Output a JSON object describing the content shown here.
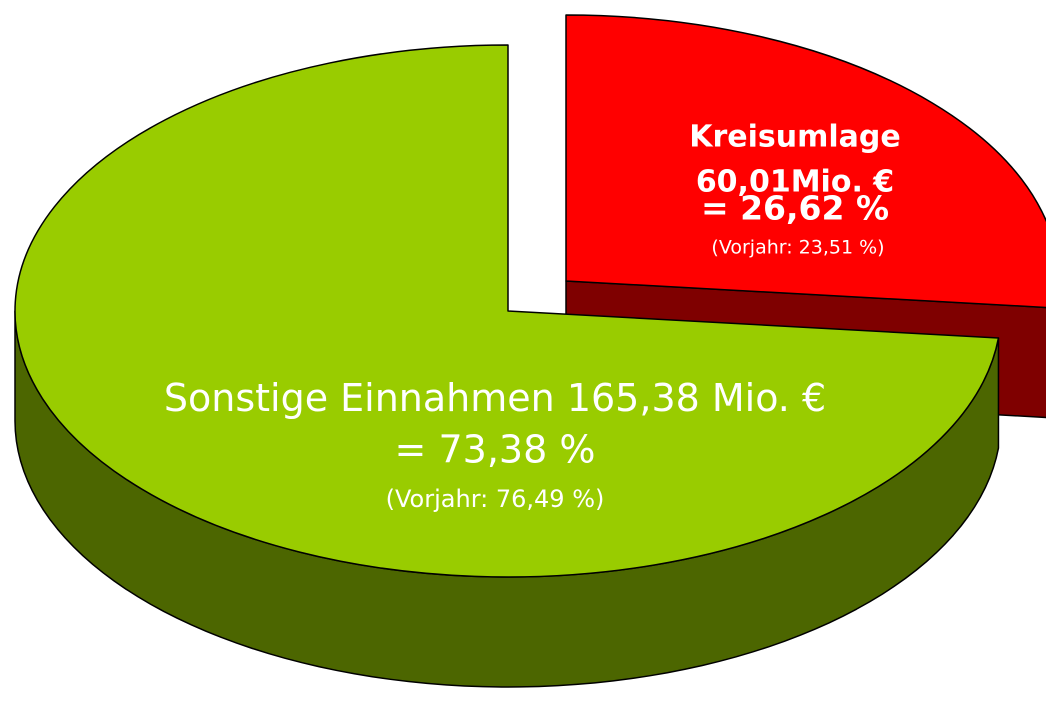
{
  "chart_data": {
    "type": "pie",
    "style": "3d-exploded",
    "categories": [
      "Kreisumlage",
      "Sonstige Einnahmen"
    ],
    "values": [
      26.62,
      73.38
    ],
    "value_labels": [
      "= 26,62 %",
      "= 73,38 %"
    ],
    "amount_labels": [
      "60,01Mio. €",
      "165,38 Mio. €"
    ],
    "prior_year_labels": [
      "(Vorjahr: 23,51 %)",
      "(Vorjahr: 76,49 %)"
    ],
    "colors": [
      "#ff0000",
      "#99cc00"
    ]
  }
}
